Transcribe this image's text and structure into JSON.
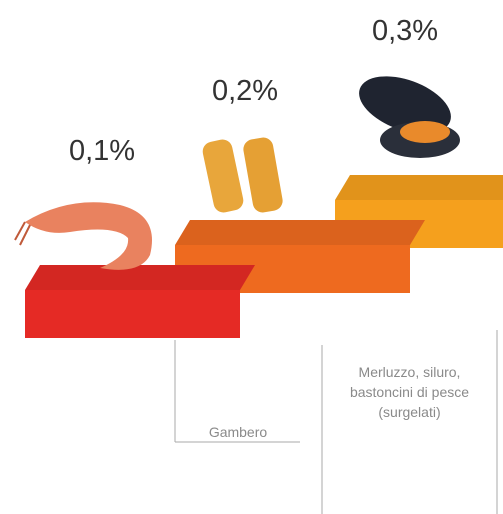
{
  "chart_data": {
    "type": "step",
    "categories": [
      "Gambero",
      "Merluzzo, siluro, bastoncini di pesce (surgelati)",
      null
    ],
    "values": [
      0.1,
      0.2,
      0.3
    ],
    "value_labels": [
      "0,1%",
      "0,2%",
      "0,3%"
    ],
    "colors": [
      "#e52a25",
      "#ee6a1f",
      "#f5a01d"
    ]
  }
}
